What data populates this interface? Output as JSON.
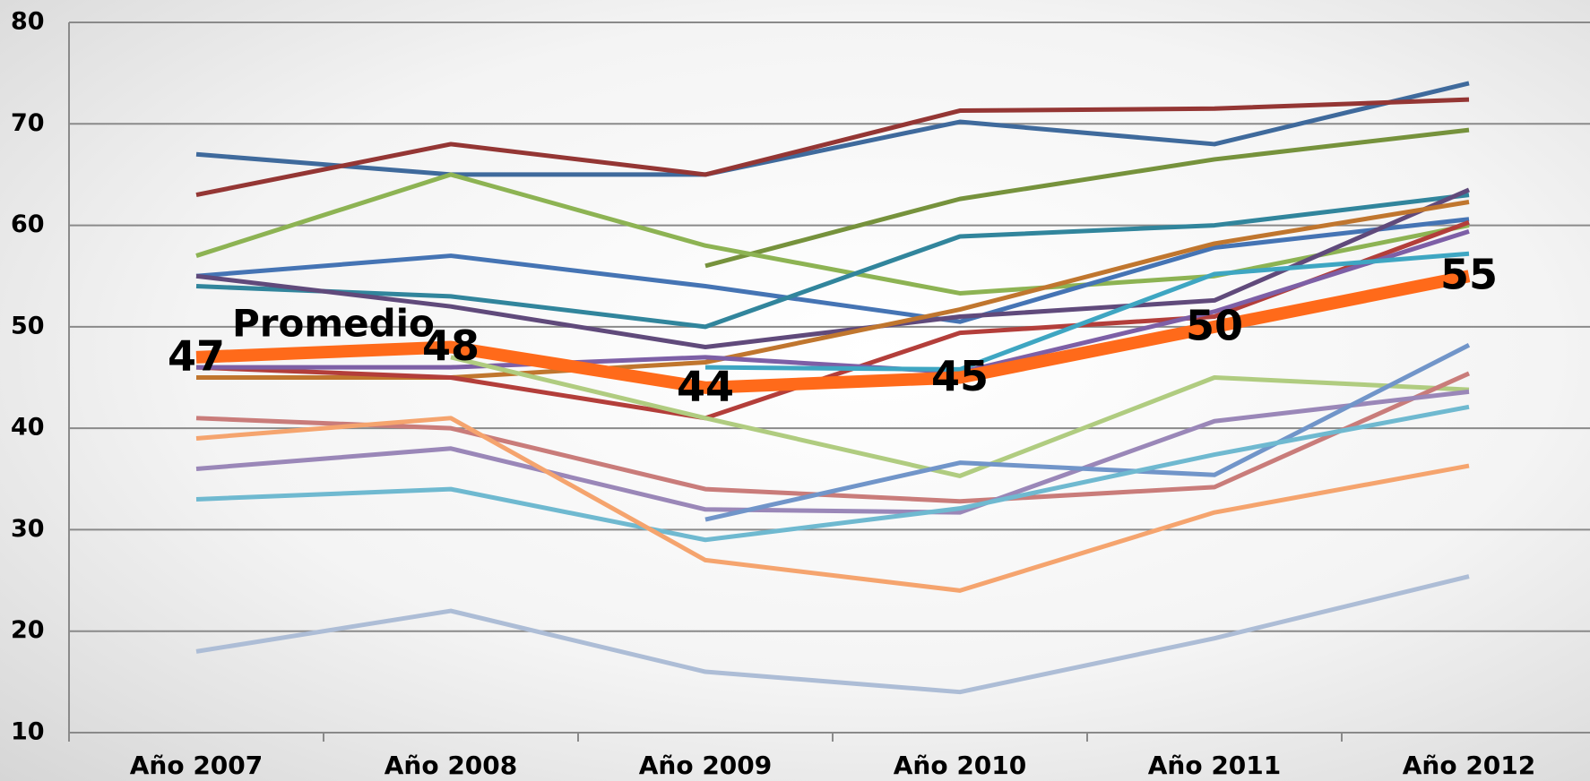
{
  "chart_data": {
    "type": "line",
    "categories": [
      "Año 2007",
      "Año 2008",
      "Año 2009",
      "Año 2010",
      "Año 2011",
      "Año 2012"
    ],
    "ylim": [
      10,
      80
    ],
    "yticks": [
      10,
      20,
      30,
      40,
      50,
      60,
      70,
      80
    ],
    "grid": true,
    "series": [
      {
        "color": "#3f6a9c",
        "values": [
          67,
          65,
          65,
          70.2,
          68,
          74
        ]
      },
      {
        "color": "#943634",
        "values": [
          63,
          68,
          65,
          71.3,
          71.5,
          72.4
        ]
      },
      {
        "color": "#76923c",
        "values": [
          null,
          null,
          56,
          62.6,
          66.5,
          69.4
        ]
      },
      {
        "color": "#8db353",
        "values": [
          57,
          65,
          58,
          53.3,
          55,
          60
        ]
      },
      {
        "color": "#4574b4",
        "values": [
          55,
          57,
          54,
          50.5,
          57.8,
          60.6
        ]
      },
      {
        "color": "#31859c",
        "values": [
          54,
          53,
          50,
          58.9,
          60,
          63
        ]
      },
      {
        "color": "#604a7b",
        "values": [
          55,
          52,
          48,
          51,
          52.6,
          63.5
        ]
      },
      {
        "color": "#c0762e",
        "values": [
          45,
          45,
          46.5,
          51.7,
          58.2,
          62.3
        ]
      },
      {
        "color": "#b33e3a",
        "values": [
          46,
          45,
          41,
          49.4,
          51,
          60.3
        ]
      },
      {
        "color": "#7d5fa6",
        "values": [
          46,
          46,
          47,
          45.5,
          51.5,
          59.4
        ]
      },
      {
        "color": "#3ea6c2",
        "values": [
          null,
          null,
          46,
          45.8,
          55.2,
          57.2
        ]
      },
      {
        "color": "#b0cc80",
        "values": [
          null,
          47,
          41,
          35.3,
          45,
          43.8
        ]
      },
      {
        "color": "#c97c7a",
        "values": [
          41,
          40,
          34,
          32.8,
          34.2,
          45.4
        ]
      },
      {
        "color": "#9a87b8",
        "values": [
          36,
          38,
          32,
          31.7,
          40.7,
          43.6
        ]
      },
      {
        "color": "#7195c9",
        "values": [
          null,
          null,
          31,
          36.6,
          35.4,
          48.2
        ]
      },
      {
        "color": "#6fb9d0",
        "values": [
          33,
          34,
          29,
          32.1,
          37.4,
          42.1
        ]
      },
      {
        "color": "#f5a46e",
        "values": [
          39,
          41,
          27,
          24,
          31.7,
          36.3
        ]
      },
      {
        "color": "#adbdd6",
        "values": [
          18,
          22,
          16,
          14,
          19.3,
          25.4
        ]
      },
      {
        "name": "Promedio",
        "color": "#ff6a1a",
        "width": 14,
        "values": [
          47,
          48,
          44,
          45,
          50,
          55
        ],
        "data_labels": true
      }
    ]
  }
}
